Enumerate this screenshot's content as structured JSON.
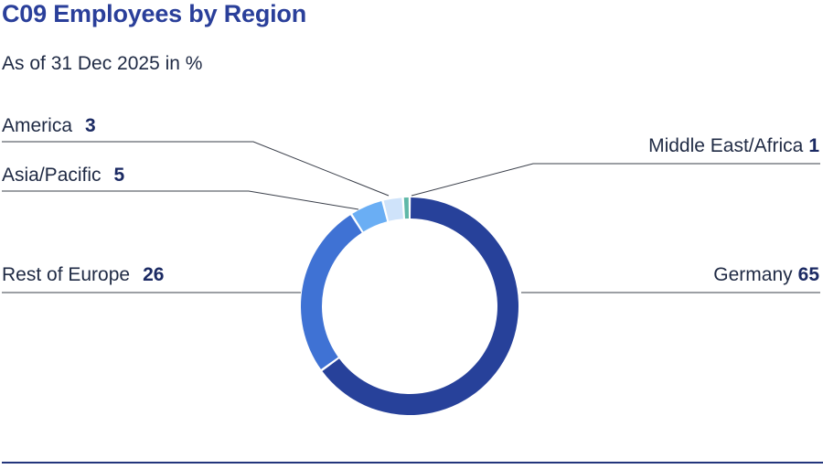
{
  "title": "C09 Employees by Region",
  "subtitle": "As of 31 Dec 2025 in %",
  "chart_data": {
    "type": "pie",
    "style": "donut",
    "title": "C09 Employees by Region",
    "subtitle": "As of 31 Dec 2025 in %",
    "unit": "%",
    "slices": [
      {
        "name": "Germany",
        "value": 65,
        "color": "#27419a"
      },
      {
        "name": "Rest of Europe",
        "value": 26,
        "color": "#3f72d4"
      },
      {
        "name": "Asia/Pacific",
        "value": 5,
        "color": "#6aaef4"
      },
      {
        "name": "America",
        "value": 3,
        "color": "#cfe3fa"
      },
      {
        "name": "Middle East/Africa",
        "value": 1,
        "color": "#5fb8a8"
      }
    ]
  }
}
